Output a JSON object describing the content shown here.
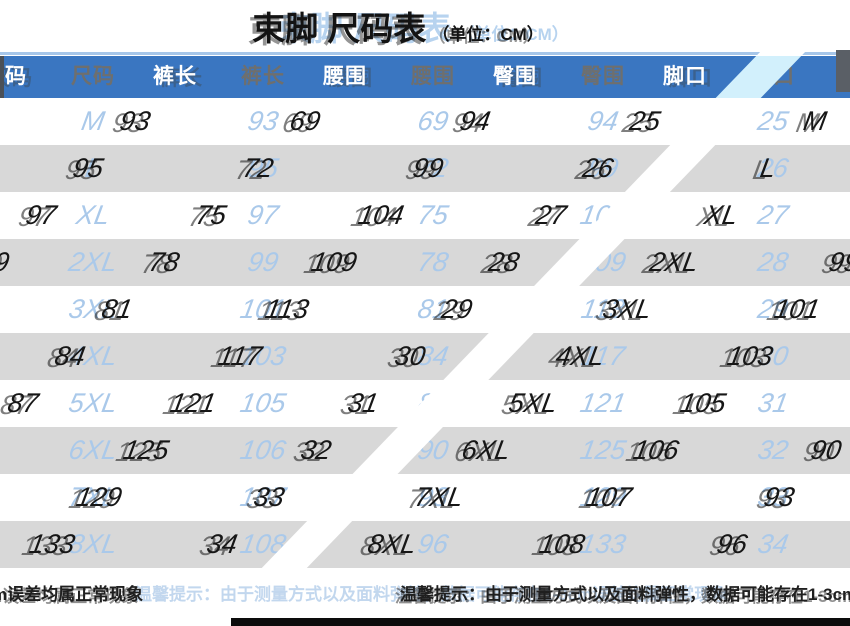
{
  "title": {
    "text": "束脚 尺码表",
    "unit": "（单位：CM）"
  },
  "table": {
    "columns": [
      "尺码",
      "裤长",
      "腰围",
      "臀围",
      "脚口"
    ],
    "rows": [
      [
        "M",
        "93",
        "69",
        "94",
        "25"
      ],
      [
        "L",
        "95",
        "72",
        "99",
        "26"
      ],
      [
        "XL",
        "97",
        "75",
        "104",
        "27"
      ],
      [
        "2XL",
        "99",
        "78",
        "109",
        "28"
      ],
      [
        "3XL",
        "101",
        "81",
        "113",
        "29"
      ],
      [
        "4XL",
        "103",
        "84",
        "117",
        "30"
      ],
      [
        "5XL",
        "105",
        "87",
        "121",
        "31"
      ],
      [
        "6XL",
        "106",
        "90",
        "125",
        "32"
      ],
      [
        "7XL",
        "107",
        "93",
        "129",
        "33"
      ],
      [
        "8XL",
        "108",
        "96",
        "133",
        "34"
      ]
    ]
  },
  "note": {
    "text": "温馨提示：由于测量方式以及面料弹性，数据可能存在1-3cm误差均属正常现象"
  },
  "colors": {
    "header_bg": "#3a76c1",
    "stripe_gray": "#d8d8d8",
    "dark_text": "#161616",
    "ghost_text": "#aac9ea",
    "header_ghost_label": "#6e6f6e",
    "seam_cyan": "#d2f0fc",
    "accent_line": "#a6c6e9",
    "bottom_bar": "#0c0c0c"
  }
}
